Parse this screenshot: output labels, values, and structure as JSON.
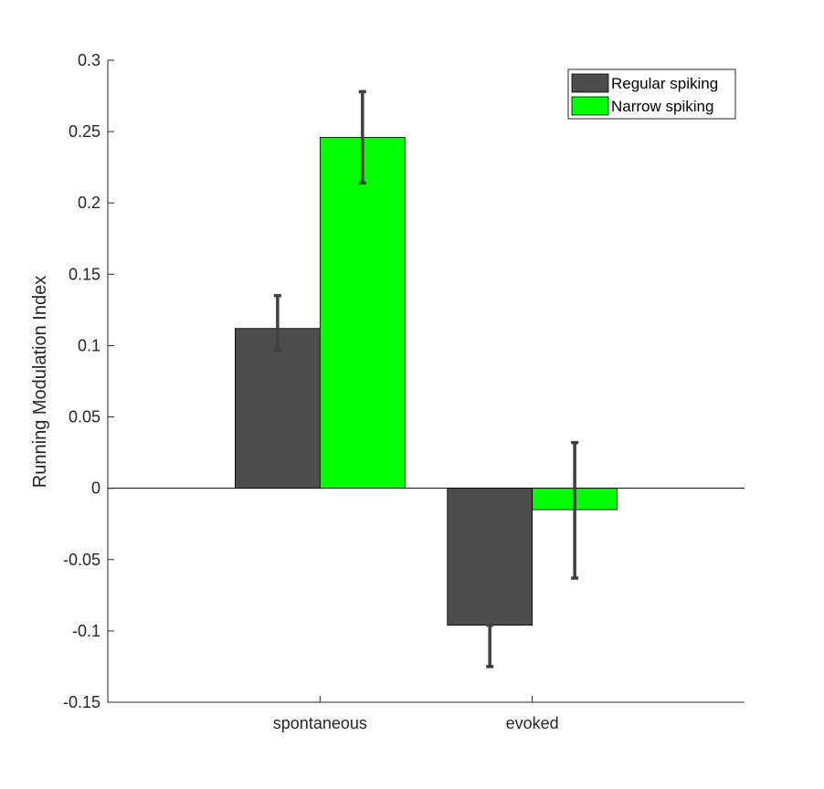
{
  "chart_data": {
    "type": "bar",
    "title": "",
    "xlabel": "",
    "ylabel": "Running Modulation Index",
    "categories": [
      "spontaneous",
      "evoked"
    ],
    "ylim": [
      -0.15,
      0.3
    ],
    "yticks": [
      -0.15,
      -0.1,
      -0.05,
      0,
      0.05,
      0.1,
      0.15,
      0.2,
      0.25,
      0.3
    ],
    "ytick_labels": [
      "-0.15",
      "-0.1",
      "-0.05",
      "0",
      "0.05",
      "0.1",
      "0.15",
      "0.2",
      "0.25",
      "0.3"
    ],
    "grid": false,
    "legend_position": "top-right",
    "series": [
      {
        "name": "Regular spiking",
        "color": "#4d4d4d",
        "values": [
          0.112,
          -0.096
        ],
        "error_low": [
          0.097,
          -0.125
        ],
        "error_high": [
          0.135,
          -0.096
        ]
      },
      {
        "name": "Narrow spiking",
        "color": "#00ff00",
        "values": [
          0.246,
          -0.015
        ],
        "error_low": [
          0.214,
          -0.063
        ],
        "error_high": [
          0.278,
          0.032
        ]
      }
    ],
    "errorbar_color": "#404040"
  }
}
